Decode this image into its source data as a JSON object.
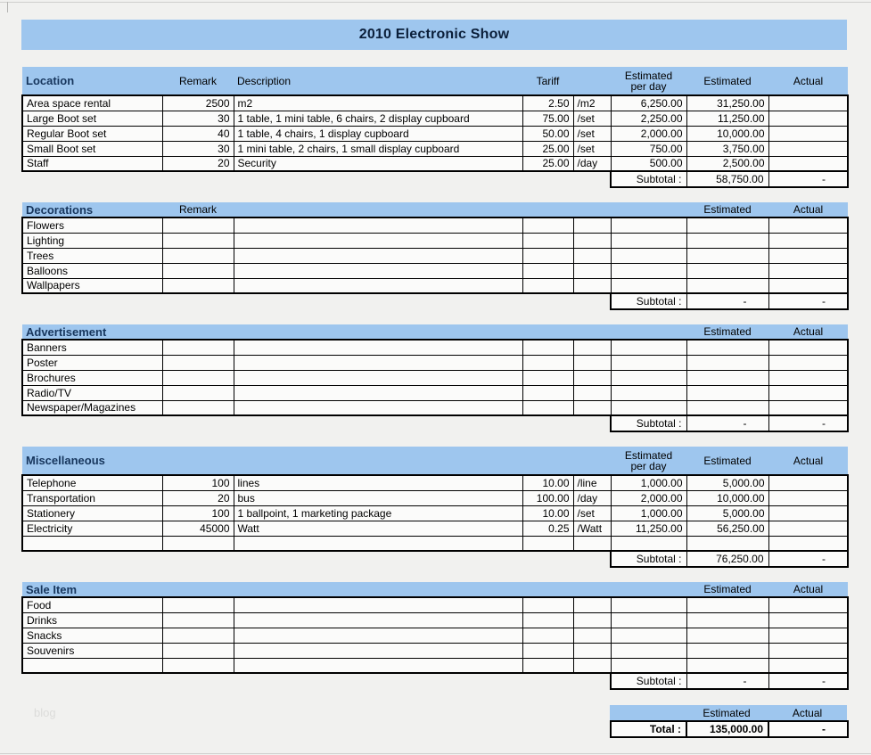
{
  "page": {
    "title": "2010 Electronic Show",
    "watermark": "blog"
  },
  "colors": {
    "band_blue": "#9EC6EE",
    "section_title_navy": "#17365D",
    "cell_bg": "#FBFBFA",
    "page_bg": "#F1F1EF",
    "border_black": "#000000"
  },
  "sections": [
    {
      "id": "location",
      "title": "Location",
      "tall": true,
      "headers": {
        "remark": "Remark",
        "description": "Description",
        "tariff": "Tariff",
        "per_day_line1": "Estimated",
        "per_day_line2": "per day",
        "estimated": "Estimated",
        "actual": "Actual"
      },
      "rows": [
        {
          "item": "Area space rental",
          "remark": "2500",
          "description": "m2",
          "tariff": "2.50",
          "unit": "/m2",
          "per_day": "6,250.00",
          "estimated": "31,250.00",
          "actual": ""
        },
        {
          "item": "Large Boot set",
          "remark": "30",
          "description": "1 table, 1 mini table, 6 chairs, 2 display cupboard",
          "tariff": "75.00",
          "unit": "/set",
          "per_day": "2,250.00",
          "estimated": "11,250.00",
          "actual": ""
        },
        {
          "item": "Regular Boot set",
          "remark": "40",
          "description": "1 table, 4 chairs, 1 display cupboard",
          "tariff": "50.00",
          "unit": "/set",
          "per_day": "2,000.00",
          "estimated": "10,000.00",
          "actual": ""
        },
        {
          "item": "Small Boot set",
          "remark": "30",
          "description": "1 mini table, 2 chairs, 1 small display cupboard",
          "tariff": "25.00",
          "unit": "/set",
          "per_day": "750.00",
          "estimated": "3,750.00",
          "actual": ""
        },
        {
          "item": "Staff",
          "remark": "20",
          "description": "Security",
          "tariff": "25.00",
          "unit": "/day",
          "per_day": "500.00",
          "estimated": "2,500.00",
          "actual": ""
        }
      ],
      "subtotal": {
        "label": "Subtotal :",
        "estimated": "58,750.00",
        "actual": "-"
      }
    },
    {
      "id": "decorations",
      "title": "Decorations",
      "tall": false,
      "headers": {
        "remark": "Remark",
        "estimated": "Estimated",
        "actual": "Actual"
      },
      "rows": [
        {
          "item": "Flowers",
          "remark": "",
          "description": "",
          "tariff": "",
          "unit": "",
          "per_day": "",
          "estimated": "",
          "actual": ""
        },
        {
          "item": "Lighting",
          "remark": "",
          "description": "",
          "tariff": "",
          "unit": "",
          "per_day": "",
          "estimated": "",
          "actual": ""
        },
        {
          "item": "Trees",
          "remark": "",
          "description": "",
          "tariff": "",
          "unit": "",
          "per_day": "",
          "estimated": "",
          "actual": ""
        },
        {
          "item": "Balloons",
          "remark": "",
          "description": "",
          "tariff": "",
          "unit": "",
          "per_day": "",
          "estimated": "",
          "actual": ""
        },
        {
          "item": "Wallpapers",
          "remark": "",
          "description": "",
          "tariff": "",
          "unit": "",
          "per_day": "",
          "estimated": "",
          "actual": ""
        }
      ],
      "subtotal": {
        "label": "Subtotal :",
        "estimated": "-",
        "actual": "-"
      }
    },
    {
      "id": "advertisement",
      "title": "Advertisement",
      "tall": false,
      "headers": {
        "estimated": "Estimated",
        "actual": "Actual"
      },
      "rows": [
        {
          "item": "Banners",
          "remark": "",
          "description": "",
          "tariff": "",
          "unit": "",
          "per_day": "",
          "estimated": "",
          "actual": ""
        },
        {
          "item": "Poster",
          "remark": "",
          "description": "",
          "tariff": "",
          "unit": "",
          "per_day": "",
          "estimated": "",
          "actual": ""
        },
        {
          "item": "Brochures",
          "remark": "",
          "description": "",
          "tariff": "",
          "unit": "",
          "per_day": "",
          "estimated": "",
          "actual": ""
        },
        {
          "item": "Radio/TV",
          "remark": "",
          "description": "",
          "tariff": "",
          "unit": "",
          "per_day": "",
          "estimated": "",
          "actual": ""
        },
        {
          "item": "Newspaper/Magazines",
          "remark": "",
          "description": "",
          "tariff": "",
          "unit": "",
          "per_day": "",
          "estimated": "",
          "actual": ""
        }
      ],
      "subtotal": {
        "label": "Subtotal :",
        "estimated": "-",
        "actual": "-"
      }
    },
    {
      "id": "miscellaneous",
      "title": "Miscellaneous",
      "tall": true,
      "headers": {
        "per_day_line1": "Estimated",
        "per_day_line2": "per day",
        "estimated": "Estimated",
        "actual": "Actual"
      },
      "rows": [
        {
          "item": "Telephone",
          "remark": "100",
          "description": "lines",
          "tariff": "10.00",
          "unit": "/line",
          "per_day": "1,000.00",
          "estimated": "5,000.00",
          "actual": ""
        },
        {
          "item": "Transportation",
          "remark": "20",
          "description": "bus",
          "tariff": "100.00",
          "unit": "/day",
          "per_day": "2,000.00",
          "estimated": "10,000.00",
          "actual": ""
        },
        {
          "item": "Stationery",
          "remark": "100",
          "description": "1 ballpoint, 1 marketing package",
          "tariff": "10.00",
          "unit": "/set",
          "per_day": "1,000.00",
          "estimated": "5,000.00",
          "actual": ""
        },
        {
          "item": "Electricity",
          "remark": "45000",
          "description": "Watt",
          "tariff": "0.25",
          "unit": "/Watt",
          "per_day": "11,250.00",
          "estimated": "56,250.00",
          "actual": ""
        },
        {
          "item": "",
          "remark": "",
          "description": "",
          "tariff": "",
          "unit": "",
          "per_day": "",
          "estimated": "",
          "actual": ""
        }
      ],
      "subtotal": {
        "label": "Subtotal :",
        "estimated": "76,250.00",
        "actual": "-"
      }
    },
    {
      "id": "sale-item",
      "title": "Sale Item",
      "tall": false,
      "headers": {
        "estimated": "Estimated",
        "actual": "Actual"
      },
      "rows": [
        {
          "item": "Food",
          "remark": "",
          "description": "",
          "tariff": "",
          "unit": "",
          "per_day": "",
          "estimated": "",
          "actual": ""
        },
        {
          "item": "Drinks",
          "remark": "",
          "description": "",
          "tariff": "",
          "unit": "",
          "per_day": "",
          "estimated": "",
          "actual": ""
        },
        {
          "item": "Snacks",
          "remark": "",
          "description": "",
          "tariff": "",
          "unit": "",
          "per_day": "",
          "estimated": "",
          "actual": ""
        },
        {
          "item": "Souvenirs",
          "remark": "",
          "description": "",
          "tariff": "",
          "unit": "",
          "per_day": "",
          "estimated": "",
          "actual": ""
        },
        {
          "item": "",
          "remark": "",
          "description": "",
          "tariff": "",
          "unit": "",
          "per_day": "",
          "estimated": "",
          "actual": ""
        }
      ],
      "subtotal": {
        "label": "Subtotal :",
        "estimated": "-",
        "actual": "-"
      }
    }
  ],
  "total": {
    "header_estimated": "Estimated",
    "header_actual": "Actual",
    "label": "Total :",
    "estimated": "135,000.00",
    "actual": "-"
  }
}
